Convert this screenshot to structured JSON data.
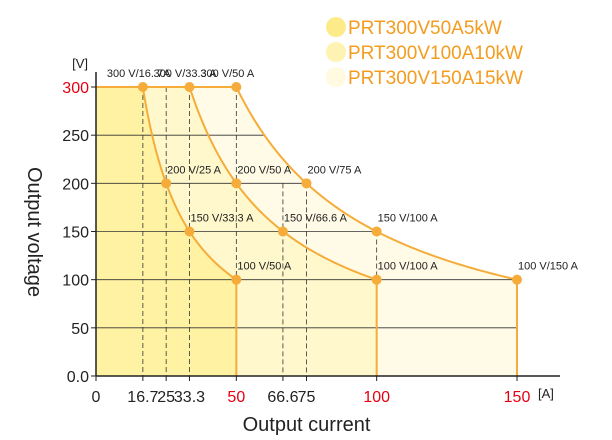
{
  "chart_data": {
    "type": "line",
    "xlabel": "Output current",
    "ylabel": "Output voltage",
    "x_unit": "[A]",
    "y_unit": "[V]",
    "xlim": [
      0,
      150
    ],
    "ylim": [
      0,
      300
    ],
    "x_ticks": [
      "0",
      "16.7",
      "25",
      "33.3",
      "50",
      "66.6",
      "75",
      "100",
      "150"
    ],
    "x_tick_values": [
      0,
      16.7,
      25,
      33.3,
      50,
      66.6,
      75,
      100,
      150
    ],
    "x_ticks_highlighted": [
      "50",
      "100",
      "150"
    ],
    "y_ticks": [
      "0.0",
      "50",
      "100",
      "150",
      "200",
      "250",
      "300"
    ],
    "y_tick_values": [
      0,
      50,
      100,
      150,
      200,
      250,
      300
    ],
    "y_ticks_highlighted": [
      "300"
    ],
    "colors": {
      "curve": "#f5ac3a",
      "highlight": "#e60012",
      "fill_5kw": "#fff3a3",
      "fill_10kw": "#fff8cc",
      "fill_15kw": "#fffbe6",
      "legend_text": "#f39c1f"
    },
    "series": [
      {
        "name": "PRT300V50A5kW",
        "power_w": 5000,
        "points": [
          {
            "x": 16.7,
            "y": 300,
            "label": "300 V/16. 7A"
          },
          {
            "x": 25,
            "y": 200,
            "label": "200 V/25 A"
          },
          {
            "x": 33.3,
            "y": 150,
            "label": "150 V/33.3 A"
          },
          {
            "x": 50,
            "y": 100,
            "label": "100 V/50 A"
          }
        ]
      },
      {
        "name": "PRT300V100A10kW",
        "power_w": 10000,
        "points": [
          {
            "x": 33.3,
            "y": 300,
            "label": "300 V/33.3 A"
          },
          {
            "x": 50,
            "y": 200,
            "label": "200 V/50 A"
          },
          {
            "x": 66.6,
            "y": 150,
            "label": "150 V/66.6 A"
          },
          {
            "x": 100,
            "y": 100,
            "label": "100 V/100 A"
          }
        ]
      },
      {
        "name": "PRT300V150A15kW",
        "power_w": 15000,
        "points": [
          {
            "x": 50,
            "y": 300,
            "label": "300 V/50 A"
          },
          {
            "x": 75,
            "y": 200,
            "label": "200 V/75 A"
          },
          {
            "x": 100,
            "y": 150,
            "label": "150 V/100 A"
          },
          {
            "x": 150,
            "y": 100,
            "label": "100 V/150 A"
          }
        ]
      }
    ],
    "legend_position": "top-right",
    "grid": "horizontal"
  }
}
